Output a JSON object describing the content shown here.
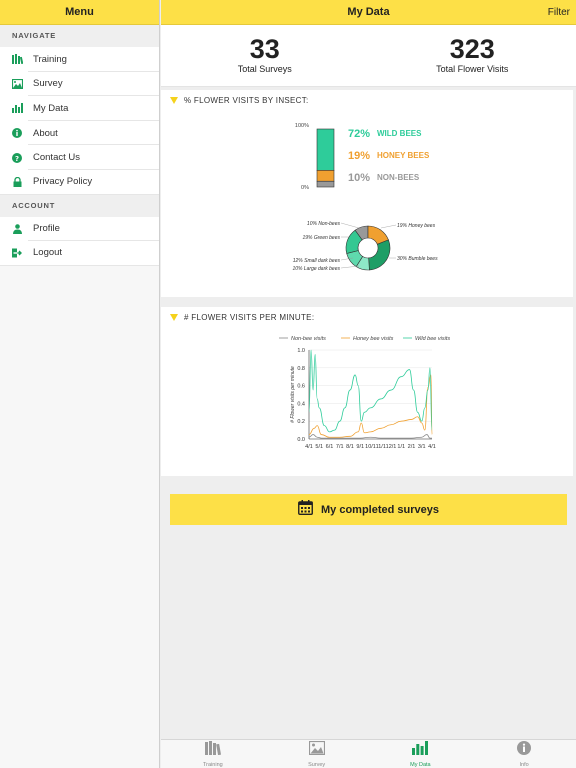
{
  "sidebar": {
    "header": "Menu",
    "navigate_label": "NAVIGATE",
    "account_label": "ACCOUNT",
    "items": [
      {
        "label": "Training",
        "icon": "books-icon"
      },
      {
        "label": "Survey",
        "icon": "image-icon"
      },
      {
        "label": "My Data",
        "icon": "bar-chart-icon"
      },
      {
        "label": "About",
        "icon": "info-icon"
      },
      {
        "label": "Contact Us",
        "icon": "question-icon"
      },
      {
        "label": "Privacy Policy",
        "icon": "lock-icon"
      }
    ],
    "account_items": [
      {
        "label": "Profile",
        "icon": "person-icon"
      },
      {
        "label": "Logout",
        "icon": "logout-icon"
      }
    ]
  },
  "header": {
    "title": "My Data",
    "filter_label": "Filter"
  },
  "stats": {
    "total_surveys": "33",
    "total_surveys_label": "Total Surveys",
    "total_visits": "323",
    "total_visits_label": "Total Flower Visits"
  },
  "insect_card": {
    "title": "% FLOWER VISITS BY INSECT:",
    "bar_top_label": "100%",
    "bar_bottom_label": "0%",
    "legend": [
      {
        "pct": "72%",
        "name": "WILD BEES",
        "color": "#2ecc9a"
      },
      {
        "pct": "19%",
        "name": "HONEY BEES",
        "color": "#f0a030"
      },
      {
        "pct": "10%",
        "name": "NON-BEES",
        "color": "#999999"
      }
    ],
    "donut_labels": {
      "non_bees": "10% Non-bees",
      "honey_bees": "19% Honey bees",
      "green_bees": "19% Green bees",
      "bumble_bees": "30% Bumble bees",
      "small_dark_bees": "12% Small dark bees",
      "large_dark_bees": "10% Large dark bees"
    }
  },
  "rate_card": {
    "title": "# FLOWER VISITS PER MINUTE:"
  },
  "chart_data": [
    {
      "type": "bar",
      "stacked": true,
      "categories": [
        ""
      ],
      "series": [
        {
          "name": "WILD BEES",
          "values": [
            72
          ]
        },
        {
          "name": "HONEY BEES",
          "values": [
            19
          ]
        },
        {
          "name": "NON-BEES",
          "values": [
            10
          ]
        }
      ],
      "ylim": [
        0,
        100
      ],
      "colors": [
        "#2ecc9a",
        "#f0a030",
        "#999999"
      ]
    },
    {
      "type": "pie",
      "donut": true,
      "slices": [
        {
          "label": "10% Non-bees",
          "value": 10,
          "color": "#999999"
        },
        {
          "label": "19% Honey bees",
          "value": 19,
          "color": "#f0a030"
        },
        {
          "label": "30% Bumble bees",
          "value": 30,
          "color": "#1e9e66"
        },
        {
          "label": "10% Large dark bees",
          "value": 10,
          "color": "#8ee8c8"
        },
        {
          "label": "12% Small dark bees",
          "value": 12,
          "color": "#5fd9ad"
        },
        {
          "label": "19% Green bees",
          "value": 19,
          "color": "#34c892"
        }
      ]
    },
    {
      "type": "line",
      "ylabel": "# Flower visits per minute",
      "ylim": [
        0,
        1.0
      ],
      "yticks": [
        "0.0",
        "0.2",
        "0.4",
        "0.6",
        "0.8",
        "1.0"
      ],
      "xticks": [
        "4/1",
        "5/1",
        "6/1",
        "7/1",
        "8/1",
        "9/1",
        "10/1",
        "11/1",
        "12/1",
        "1/1",
        "2/1",
        "3/1",
        "4/1"
      ],
      "legend": [
        "Non-bee visits",
        "Honey bee visits",
        "Wild bee visits"
      ],
      "series": [
        {
          "name": "Non-bee visits",
          "color": "#888888",
          "x": [
            0,
            0.4,
            0.8,
            1.2,
            2,
            3,
            4,
            5,
            6,
            7,
            8,
            9,
            10,
            11,
            11.5,
            11.8,
            12
          ],
          "y": [
            0.02,
            0.05,
            0.02,
            0.01,
            0.01,
            0.01,
            0.01,
            0.01,
            0.02,
            0.01,
            0.01,
            0.01,
            0.01,
            0.02,
            0.05,
            0.01,
            0.01
          ]
        },
        {
          "name": "Honey bee visits",
          "color": "#f0a030",
          "x": [
            0,
            0.5,
            0.8,
            1.2,
            2,
            3,
            4,
            4.8,
            5.1,
            5.4,
            6,
            7,
            8,
            9,
            10,
            10.6,
            11,
            11.3,
            11.6,
            11.9,
            12
          ],
          "y": [
            0.05,
            0.12,
            0.15,
            0.05,
            0.02,
            0.02,
            0.03,
            0.08,
            0.18,
            0.07,
            0.08,
            0.12,
            0.16,
            0.2,
            0.22,
            0.25,
            0.18,
            0.1,
            0.58,
            0.72,
            0.05
          ]
        },
        {
          "name": "Wild bee visits",
          "color": "#2ecc9a",
          "x": [
            0,
            0.2,
            0.4,
            0.6,
            0.8,
            1.0,
            1.5,
            2,
            2.5,
            3,
            3.5,
            4,
            4.5,
            4.8,
            5.1,
            5.4,
            6,
            7,
            8,
            9,
            9.8,
            10.2,
            10.6,
            11,
            11.3,
            11.6,
            11.8,
            12
          ],
          "y": [
            0.3,
            1.0,
            0.55,
            0.95,
            0.45,
            0.35,
            0.15,
            0.08,
            0.1,
            0.2,
            0.35,
            0.55,
            0.72,
            0.6,
            0.2,
            0.3,
            0.35,
            0.45,
            0.55,
            0.7,
            0.78,
            0.55,
            0.3,
            0.2,
            0.35,
            0.55,
            0.8,
            0.1
          ]
        }
      ]
    }
  ],
  "cta": {
    "label": "My completed surveys"
  },
  "tabs": [
    {
      "label": "Training",
      "icon": "books-icon"
    },
    {
      "label": "Survey",
      "icon": "image-icon"
    },
    {
      "label": "My Data",
      "icon": "bar-chart-icon"
    },
    {
      "label": "Info",
      "icon": "info-icon"
    }
  ]
}
